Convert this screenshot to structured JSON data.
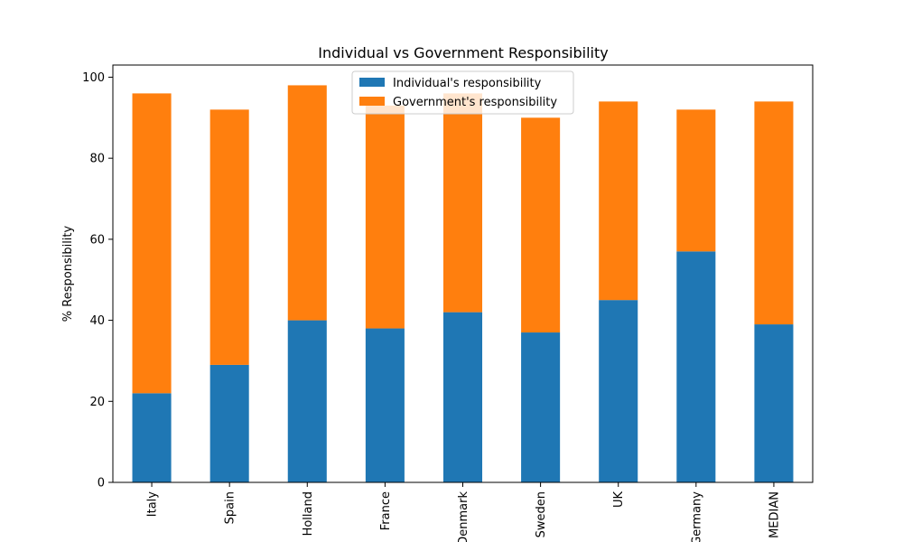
{
  "chart_data": {
    "type": "bar",
    "stacked": true,
    "title": "Individual vs Government Responsibility",
    "xlabel": "",
    "ylabel": "% Responsibility",
    "categories": [
      "Italy",
      "Spain",
      "Holland",
      "France",
      "Denmark",
      "Sweden",
      "UK",
      "Germany",
      "MEDIAN"
    ],
    "series": [
      {
        "name": "Individual's responsibility",
        "color": "#1f77b4",
        "values": [
          22,
          29,
          40,
          38,
          42,
          37,
          45,
          57,
          39
        ]
      },
      {
        "name": "Government's responsibility",
        "color": "#ff7f0e",
        "values": [
          74,
          63,
          58,
          55,
          54,
          53,
          49,
          35,
          55
        ]
      }
    ],
    "ylim": [
      0,
      103
    ],
    "yticks": [
      0,
      20,
      40,
      60,
      80,
      100
    ],
    "grid": false,
    "legend_position": "top-center"
  }
}
